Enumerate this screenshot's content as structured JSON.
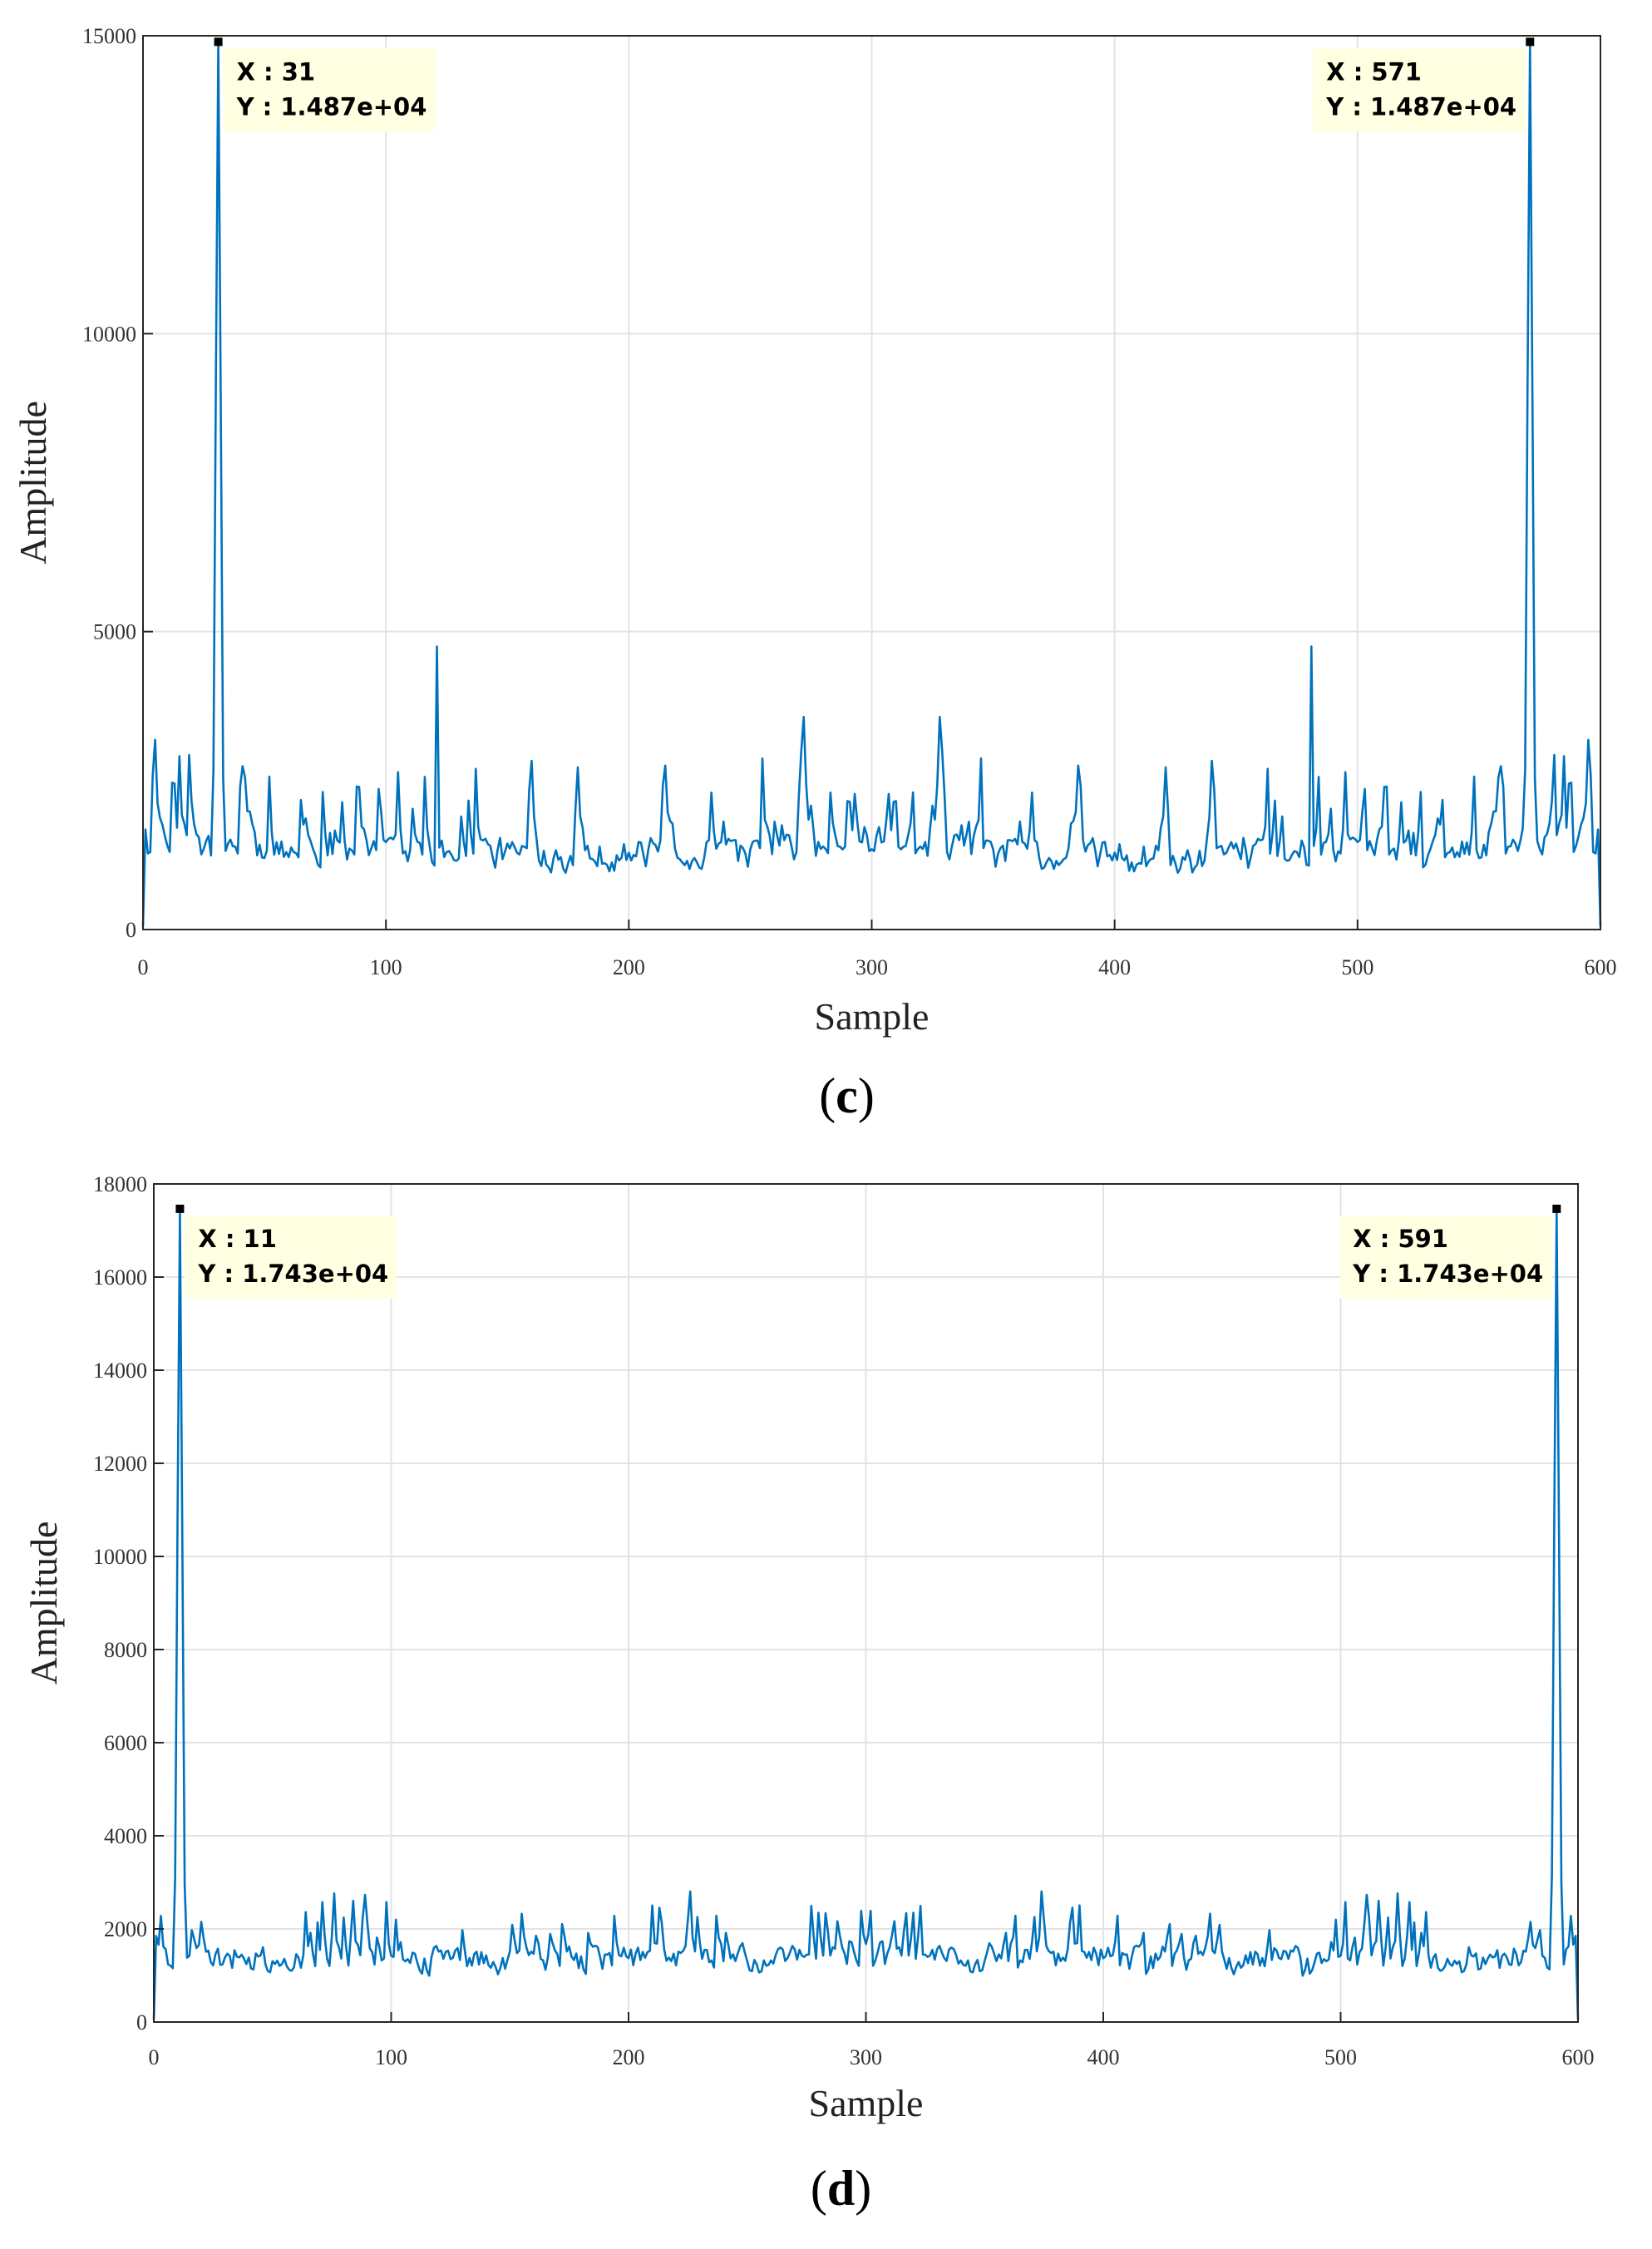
{
  "colors": {
    "line": "#0072BD",
    "grid": "#e3e3e3",
    "axis": "#262626",
    "datatip_bg": "#ffffe1",
    "background": "#ffffff"
  },
  "chart_data": [
    {
      "type": "line",
      "panel_label": "c",
      "xlabel": "Sample",
      "ylabel": "Amplitude",
      "xlim": [
        0,
        600
      ],
      "ylim": [
        0,
        15000
      ],
      "xticks": [
        0,
        100,
        200,
        300,
        400,
        500,
        600
      ],
      "yticks": [
        0,
        5000,
        10000,
        15000
      ],
      "xtick_labels": [
        "0",
        "100",
        "200",
        "300",
        "400",
        "500",
        "600"
      ],
      "ytick_labels": [
        "0",
        "5000",
        "10000",
        "15000"
      ],
      "grid": true,
      "series": [
        {
          "peaks": [
            [
              31,
              14870
            ],
            [
              571,
              14870
            ]
          ],
          "secondary_peaks": [
            [
              121,
              4750
            ],
            [
              481,
              4750
            ]
          ],
          "noise_range": [
            200,
            4400
          ],
          "noise_mean": 1550
        }
      ],
      "datatips": [
        {
          "x": 31,
          "y": 14870,
          "x_text": "X : 31",
          "y_text": "Y : 1.487e+04",
          "side": "right"
        },
        {
          "x": 571,
          "y": 14870,
          "x_text": "X : 571",
          "y_text": "Y : 1.487e+04",
          "side": "left"
        }
      ]
    },
    {
      "type": "line",
      "panel_label": "d",
      "xlabel": "Sample",
      "ylabel": "Amplitude",
      "xlim": [
        0,
        600
      ],
      "ylim": [
        0,
        18000
      ],
      "xticks": [
        0,
        100,
        200,
        300,
        400,
        500,
        600
      ],
      "yticks": [
        0,
        2000,
        4000,
        6000,
        8000,
        10000,
        12000,
        14000,
        16000,
        18000
      ],
      "xtick_labels": [
        "0",
        "100",
        "200",
        "300",
        "400",
        "500",
        "600"
      ],
      "ytick_labels": [
        "0",
        "2000",
        "4000",
        "6000",
        "8000",
        "10000",
        "12000",
        "14000",
        "16000",
        "18000"
      ],
      "grid": true,
      "series": [
        {
          "peaks": [
            [
              11,
              17430
            ],
            [
              591,
              17430
            ]
          ],
          "secondary_peaks": [],
          "noise_range": [
            200,
            3800
          ],
          "noise_mean": 1600
        }
      ],
      "datatips": [
        {
          "x": 11,
          "y": 17430,
          "x_text": "X : 11",
          "y_text": "Y : 1.743e+04",
          "side": "right"
        },
        {
          "x": 591,
          "y": 17430,
          "x_text": "X : 591",
          "y_text": "Y : 1.743e+04",
          "side": "left"
        }
      ]
    }
  ]
}
